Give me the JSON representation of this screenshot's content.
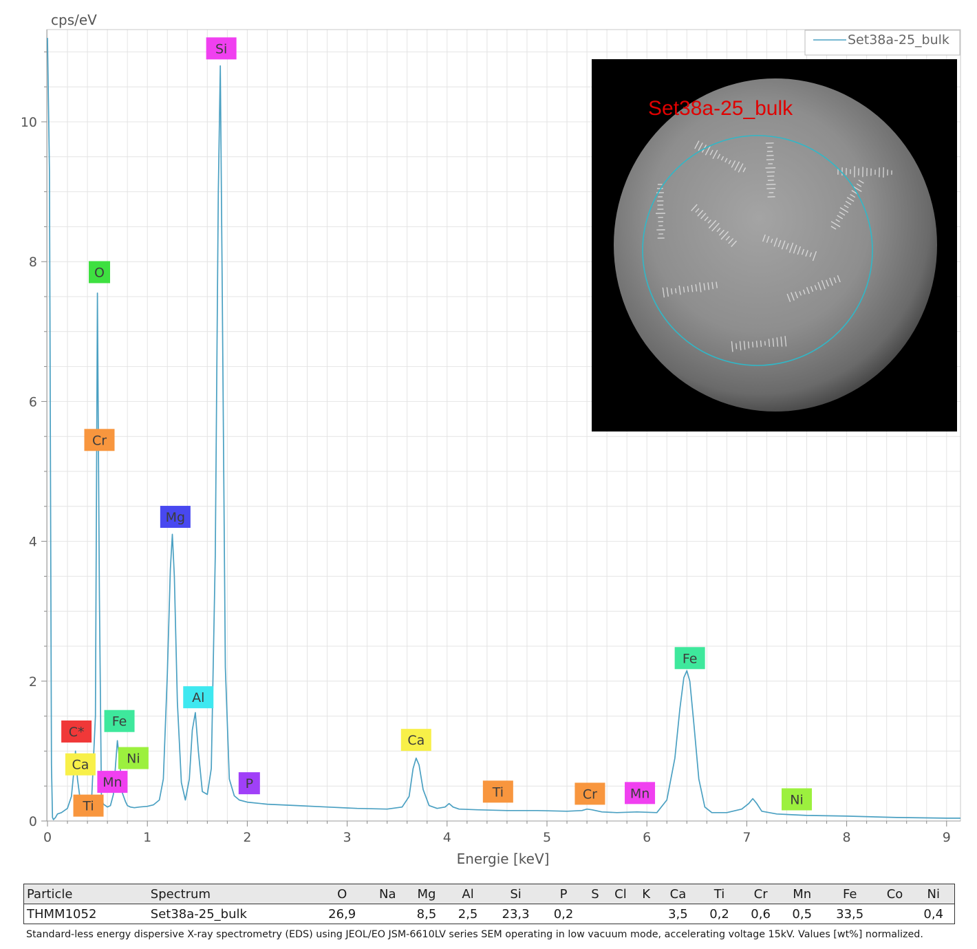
{
  "chart_data": {
    "type": "line",
    "title": "",
    "xlabel": "Energie [keV]",
    "ylabel": "cps/eV",
    "xlim": [
      0,
      9.15
    ],
    "ylim": [
      0,
      11.3
    ],
    "xticks": [
      0,
      1,
      2,
      3,
      4,
      5,
      6,
      7,
      8,
      9
    ],
    "yticks": [
      0,
      2,
      4,
      6,
      8,
      10
    ],
    "grid": true,
    "legend": {
      "position": "top-right"
    },
    "series": [
      {
        "name": "Set38a-25_bulk",
        "color": "#4aa0c2",
        "x": [
          0,
          0.02,
          0.04,
          0.05,
          0.06,
          0.08,
          0.1,
          0.14,
          0.2,
          0.24,
          0.27,
          0.28,
          0.3,
          0.33,
          0.36,
          0.4,
          0.44,
          0.48,
          0.5,
          0.52,
          0.54,
          0.56,
          0.58,
          0.6,
          0.63,
          0.66,
          0.7,
          0.72,
          0.75,
          0.78,
          0.8,
          0.83,
          0.87,
          0.92,
          1.0,
          1.06,
          1.12,
          1.16,
          1.2,
          1.23,
          1.25,
          1.27,
          1.3,
          1.34,
          1.38,
          1.42,
          1.45,
          1.48,
          1.51,
          1.55,
          1.6,
          1.64,
          1.68,
          1.71,
          1.73,
          1.75,
          1.78,
          1.82,
          1.87,
          1.92,
          2.0,
          2.2,
          2.5,
          2.8,
          3.1,
          3.4,
          3.55,
          3.62,
          3.66,
          3.69,
          3.72,
          3.76,
          3.82,
          3.9,
          3.98,
          4.02,
          4.06,
          4.12,
          4.3,
          4.6,
          4.9,
          5.2,
          5.35,
          5.4,
          5.45,
          5.55,
          5.7,
          5.9,
          6.1,
          6.2,
          6.28,
          6.33,
          6.37,
          6.4,
          6.43,
          6.47,
          6.52,
          6.58,
          6.65,
          6.8,
          6.95,
          7.02,
          7.06,
          7.1,
          7.15,
          7.3,
          7.6,
          8.0,
          8.5,
          9.0,
          9.15
        ],
        "y": [
          11.2,
          9.3,
          0.8,
          0.05,
          0.02,
          0.05,
          0.1,
          0.12,
          0.18,
          0.35,
          0.8,
          1.0,
          0.6,
          0.28,
          0.22,
          0.2,
          0.25,
          1.5,
          7.55,
          3.2,
          0.35,
          0.24,
          0.22,
          0.2,
          0.22,
          0.38,
          1.15,
          0.9,
          0.4,
          0.28,
          0.22,
          0.2,
          0.19,
          0.2,
          0.21,
          0.23,
          0.3,
          0.6,
          2.1,
          3.6,
          4.1,
          3.5,
          1.7,
          0.55,
          0.3,
          0.6,
          1.3,
          1.55,
          1.0,
          0.42,
          0.38,
          0.75,
          3.8,
          9.0,
          10.8,
          7.5,
          2.2,
          0.6,
          0.36,
          0.3,
          0.27,
          0.24,
          0.22,
          0.2,
          0.18,
          0.17,
          0.2,
          0.35,
          0.75,
          0.9,
          0.8,
          0.45,
          0.22,
          0.18,
          0.2,
          0.25,
          0.2,
          0.17,
          0.16,
          0.15,
          0.15,
          0.14,
          0.15,
          0.17,
          0.16,
          0.13,
          0.12,
          0.13,
          0.12,
          0.3,
          0.9,
          1.6,
          2.05,
          2.15,
          2.0,
          1.4,
          0.6,
          0.2,
          0.12,
          0.12,
          0.17,
          0.25,
          0.32,
          0.25,
          0.14,
          0.1,
          0.08,
          0.07,
          0.05,
          0.04,
          0.04
        ]
      }
    ],
    "annotations": [
      {
        "element": "Si",
        "x": 1.74,
        "y_label": 11.05,
        "color": "#f040f0"
      },
      {
        "element": "O",
        "x": 0.52,
        "y_label": 7.85,
        "color": "#3ee040"
      },
      {
        "element": "Cr",
        "x": 0.52,
        "y_label": 5.45,
        "color": "#f8963e"
      },
      {
        "element": "Mg",
        "x": 1.28,
        "y_label": 4.35,
        "color": "#4848f0"
      },
      {
        "element": "Al",
        "x": 1.51,
        "y_label": 1.77,
        "color": "#3ee8f0"
      },
      {
        "element": "Fe",
        "x": 0.72,
        "y_label": 1.43,
        "color": "#3ee89c"
      },
      {
        "element": "C*",
        "x": 0.29,
        "y_label": 1.28,
        "color": "#f03838"
      },
      {
        "element": "Ni",
        "x": 0.86,
        "y_label": 0.9,
        "color": "#9cf03e"
      },
      {
        "element": "Ca",
        "x": 0.33,
        "y_label": 0.81,
        "color": "#f8f048"
      },
      {
        "element": "Mn",
        "x": 0.65,
        "y_label": 0.56,
        "color": "#f040f0"
      },
      {
        "element": "Ti",
        "x": 0.41,
        "y_label": 0.22,
        "color": "#f8963e"
      },
      {
        "element": "P",
        "x": 2.02,
        "y_label": 0.54,
        "color": "#a040f8"
      },
      {
        "element": "Ca",
        "x": 3.69,
        "y_label": 1.16,
        "color": "#f8f048"
      },
      {
        "element": "Ti",
        "x": 4.51,
        "y_label": 0.42,
        "color": "#f8963e"
      },
      {
        "element": "Cr",
        "x": 5.43,
        "y_label": 0.39,
        "color": "#f8963e"
      },
      {
        "element": "Mn",
        "x": 5.93,
        "y_label": 0.4,
        "color": "#f040f0"
      },
      {
        "element": "Fe",
        "x": 6.43,
        "y_label": 2.33,
        "color": "#3ee89c"
      },
      {
        "element": "Ni",
        "x": 7.5,
        "y_label": 0.31,
        "color": "#9cf03e"
      }
    ]
  },
  "inset": {
    "label": "Set38a-25_bulk",
    "label_color": "#e00000",
    "circle_color": "#30b8c8"
  },
  "table": {
    "headers": [
      "Particle",
      "Spectrum",
      "O",
      "Na",
      "Mg",
      "Al",
      "Si",
      "P",
      "S",
      "Cl",
      "K",
      "Ca",
      "Ti",
      "Cr",
      "Mn",
      "Fe",
      "Co",
      "Ni"
    ],
    "rows": [
      [
        "THMM1052",
        "Set38a-25_bulk",
        "26,9",
        "",
        "8,5",
        "2,5",
        "23,3",
        "0,2",
        "",
        "",
        "",
        "3,5",
        "0,2",
        "0,6",
        "0,5",
        "33,5",
        "",
        "0,4"
      ]
    ]
  },
  "footnote": "Standard-less energy dispersive X-ray spectrometry (EDS) using JEOL/EO JSM-6610LV series SEM operating in low vacuum mode, accelerating voltage 15kV. Values [wt%] normalized."
}
